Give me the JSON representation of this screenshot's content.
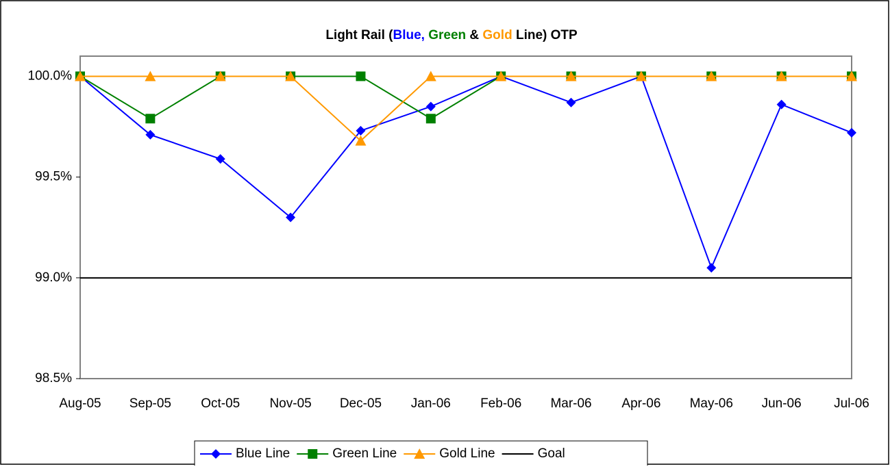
{
  "chart_data": {
    "type": "line",
    "title_parts": [
      {
        "text": "Light Rail (",
        "color": "#000000"
      },
      {
        "text": "Blue,",
        "color": "#0000ff"
      },
      {
        "text": " Green",
        "color": "#008000"
      },
      {
        "text": " &",
        "color": "#000000"
      },
      {
        "text": " Gold",
        "color": "#ff9900"
      },
      {
        "text": " Line) OTP",
        "color": "#000000"
      }
    ],
    "categories": [
      "Aug-05",
      "Sep-05",
      "Oct-05",
      "Nov-05",
      "Dec-05",
      "Jan-06",
      "Feb-06",
      "Mar-06",
      "Apr-06",
      "May-06",
      "Jun-06",
      "Jul-06"
    ],
    "series": [
      {
        "name": "Blue Line",
        "color": "#0000ff",
        "marker": "diamond",
        "values": [
          100.0,
          99.71,
          99.59,
          99.3,
          99.73,
          99.85,
          100.0,
          99.87,
          100.0,
          99.05,
          99.86,
          99.72
        ]
      },
      {
        "name": "Green Line",
        "color": "#008000",
        "marker": "square",
        "values": [
          100.0,
          99.79,
          100.0,
          100.0,
          100.0,
          99.79,
          100.0,
          100.0,
          100.0,
          100.0,
          100.0,
          100.0
        ]
      },
      {
        "name": "Gold Line",
        "color": "#ff9900",
        "marker": "triangle",
        "values": [
          100.0,
          100.0,
          100.0,
          100.0,
          99.68,
          100.0,
          100.0,
          100.0,
          100.0,
          100.0,
          100.0,
          100.0
        ]
      },
      {
        "name": "Goal",
        "color": "#000000",
        "marker": "none",
        "values": [
          99.0,
          99.0,
          99.0,
          99.0,
          99.0,
          99.0,
          99.0,
          99.0,
          99.0,
          99.0,
          99.0,
          99.0
        ]
      }
    ],
    "ylim": [
      98.5,
      100.1
    ],
    "yticks": [
      {
        "value": 98.5,
        "label": "98.5%"
      },
      {
        "value": 99.0,
        "label": "99.0%"
      },
      {
        "value": 99.5,
        "label": "99.5%"
      },
      {
        "value": 100.0,
        "label": "100.0%"
      }
    ],
    "grid": false,
    "legend": "bottom"
  }
}
